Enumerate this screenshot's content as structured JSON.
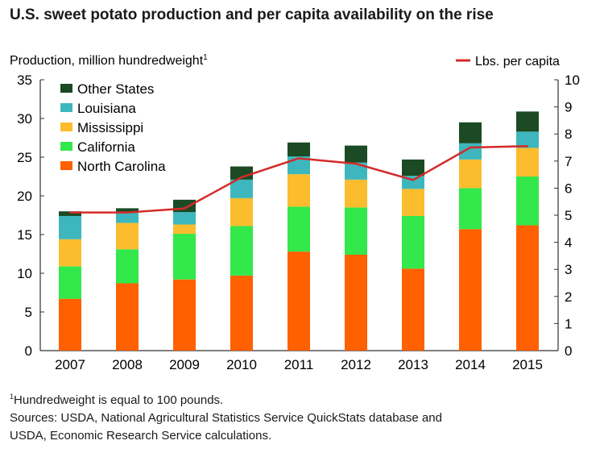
{
  "chart_data": {
    "type": "bar",
    "stacked": true,
    "title": "U.S. sweet potato production and per capita availability on the rise",
    "ylabel": "Production, million hundredweight",
    "ylabel_sup": "1",
    "y2label": "Lbs. per capita",
    "ylim": [
      0,
      35
    ],
    "yticks": [
      "0",
      "5",
      "10",
      "15",
      "20",
      "25",
      "30",
      "35"
    ],
    "y2lim": [
      0,
      10
    ],
    "y2ticks": [
      "0",
      "1",
      "2",
      "3",
      "4",
      "5",
      "6",
      "7",
      "8",
      "9",
      "10"
    ],
    "categories": [
      "2007",
      "2008",
      "2009",
      "2010",
      "2011",
      "2012",
      "2013",
      "2014",
      "2015"
    ],
    "grid": false,
    "legend": "top-left",
    "series": [
      {
        "name": "North Carolina",
        "color": "#ff6000",
        "values": [
          6.7,
          8.7,
          9.2,
          9.7,
          12.8,
          12.4,
          10.6,
          15.7,
          16.2
        ]
      },
      {
        "name": "California",
        "color": "#33e84a",
        "values": [
          4.2,
          4.4,
          5.9,
          6.4,
          5.8,
          6.1,
          6.8,
          5.3,
          6.3
        ]
      },
      {
        "name": "Mississippi",
        "color": "#fbbd2e",
        "values": [
          3.5,
          3.4,
          1.2,
          3.6,
          4.2,
          3.6,
          3.5,
          3.7,
          3.7
        ]
      },
      {
        "name": "Louisiana",
        "color": "#3db7bd",
        "values": [
          3.0,
          1.3,
          1.6,
          2.4,
          2.3,
          2.2,
          1.7,
          2.1,
          2.1
        ]
      },
      {
        "name": "Other States",
        "color": "#1b4a24",
        "values": [
          0.6,
          0.6,
          1.6,
          1.7,
          1.8,
          2.2,
          2.1,
          2.7,
          2.6
        ]
      }
    ],
    "line_series": {
      "name": "Lbs. per capita",
      "color": "#d42a2a",
      "axis": "right",
      "values": [
        5.1,
        5.1,
        5.25,
        6.4,
        7.1,
        6.9,
        6.3,
        7.5,
        7.55
      ]
    }
  },
  "footnote": "Hundredweight is equal to 100 pounds.",
  "footnote_sup": "1",
  "sources": [
    "Sources: USDA, National Agricultural Statistics Service QuickStats database and",
    "USDA, Economic Research Service calculations."
  ]
}
